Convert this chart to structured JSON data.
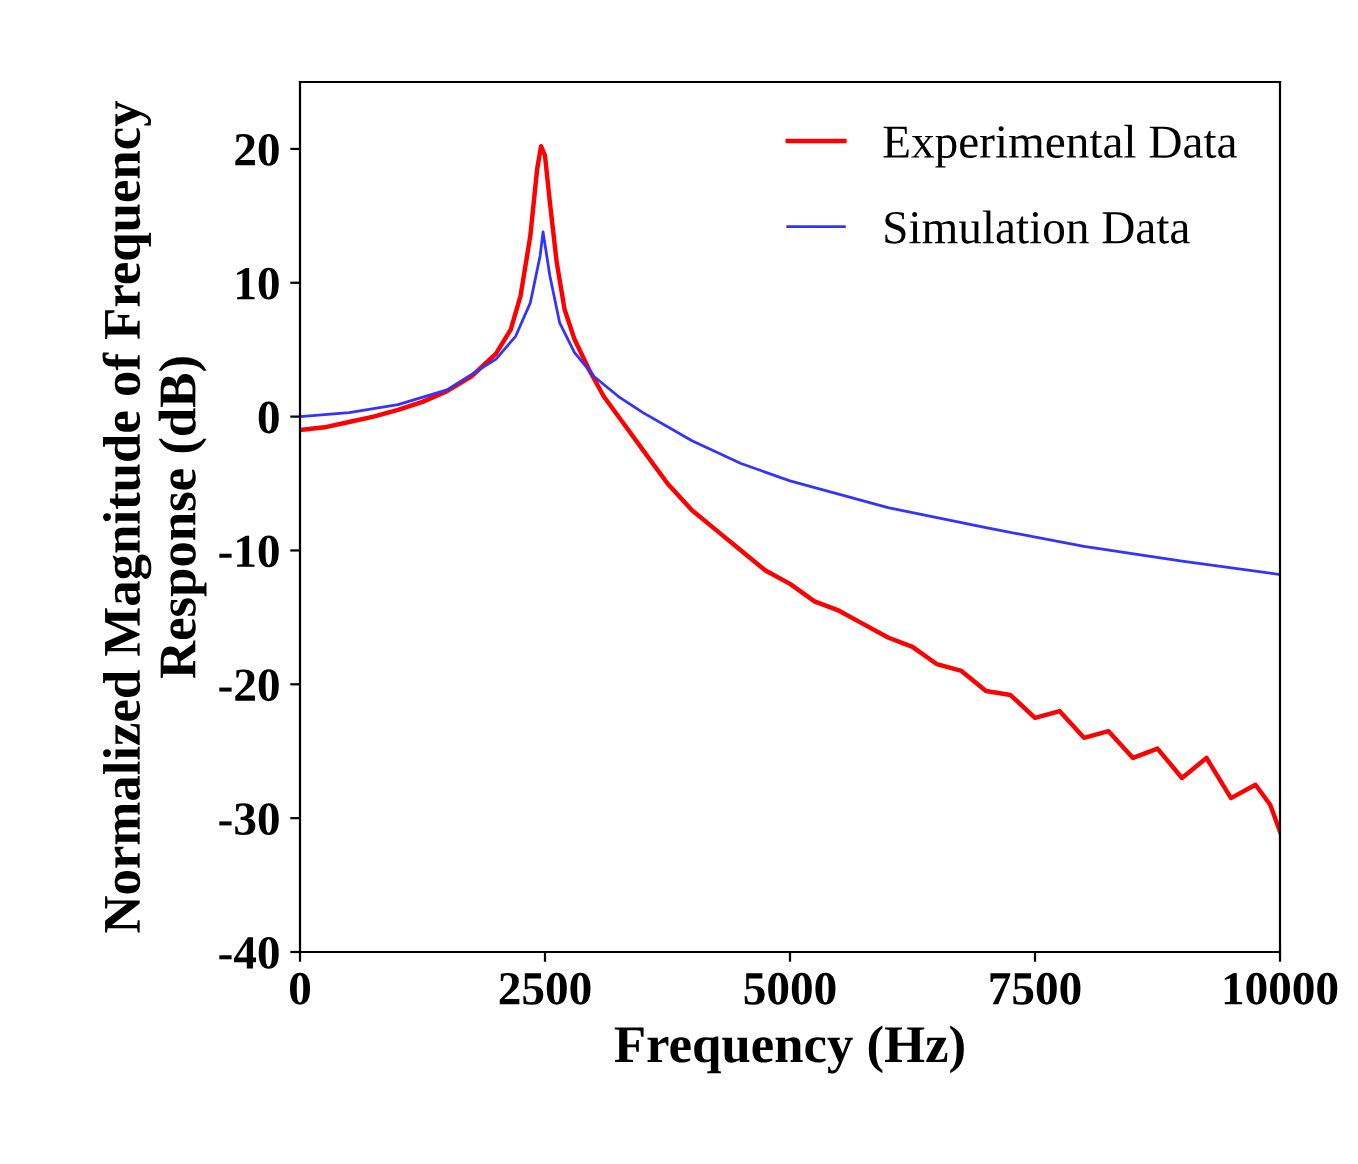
{
  "chart_data": {
    "type": "line",
    "xlabel": "Frequency (Hz)",
    "ylabel": "Normalized Magnitude of Frequency Response (dB)",
    "xlim": [
      0,
      10000
    ],
    "xticks": [
      0,
      2500,
      5000,
      7500,
      10000
    ],
    "ylim": [
      -40,
      25
    ],
    "yticks": [
      -40,
      -30,
      -20,
      -10,
      0,
      10,
      20
    ],
    "legend": "top right",
    "grid": false,
    "series": [
      {
        "name": "Experimental Data",
        "color": "#ff0000",
        "x": [
          0,
          250,
          500,
          750,
          1000,
          1250,
          1500,
          1750,
          2000,
          2150,
          2250,
          2350,
          2420,
          2460,
          2500,
          2550,
          2620,
          2700,
          2800,
          2950,
          3100,
          3300,
          3500,
          3750,
          4000,
          4250,
          4500,
          4750,
          5000,
          5250,
          5500,
          5750,
          6000,
          6250,
          6500,
          6750,
          7000,
          7250,
          7500,
          7750,
          8000,
          8250,
          8500,
          8750,
          9000,
          9250,
          9500,
          9750,
          9900,
          10000
        ],
        "values": [
          -1,
          -0.8,
          -0.4,
          0,
          0.5,
          1.1,
          1.9,
          3,
          4.7,
          6.5,
          9,
          13.5,
          18.5,
          20.2,
          19.5,
          16,
          11.5,
          8,
          5.8,
          3.5,
          1.5,
          -0.5,
          -2.5,
          -5,
          -7,
          -8.5,
          -10,
          -11.5,
          -12.5,
          -13.8,
          -14.5,
          -15.5,
          -16.5,
          -17.2,
          -18.5,
          -19,
          -20.5,
          -20.8,
          -22.5,
          -22,
          -24,
          -23.5,
          -25.5,
          -24.8,
          -27,
          -25.5,
          -28.5,
          -27.5,
          -29,
          -31
        ]
      },
      {
        "name": "Simulation Data",
        "color": "#3333ff",
        "x": [
          0,
          500,
          1000,
          1500,
          2000,
          2200,
          2350,
          2450,
          2480,
          2550,
          2650,
          2800,
          3000,
          3250,
          3500,
          4000,
          4500,
          5000,
          6000,
          7000,
          8000,
          9000,
          10000
        ],
        "values": [
          0,
          0.3,
          0.9,
          2,
          4.3,
          6,
          8.5,
          12,
          13.8,
          10.5,
          7,
          4.8,
          3,
          1.5,
          0.3,
          -1.8,
          -3.5,
          -4.8,
          -6.8,
          -8.3,
          -9.7,
          -10.8,
          -11.8
        ]
      }
    ]
  }
}
